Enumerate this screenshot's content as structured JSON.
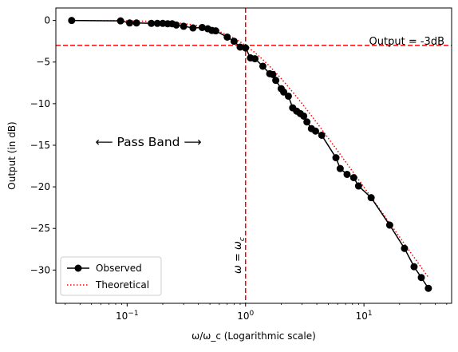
{
  "chart_data": {
    "type": "line",
    "xlabel": "ω/ω_c (Logarithmic scale)",
    "ylabel": "Output (in dB)",
    "xscale": "log",
    "xlim": [
      0.025,
      55
    ],
    "ylim": [
      -34,
      1.5
    ],
    "yticks": [
      0,
      -5,
      -10,
      -15,
      -20,
      -25,
      -30
    ],
    "xticks": [
      {
        "value": 0.1,
        "base": "10",
        "exp": "−1"
      },
      {
        "value": 1,
        "base": "10",
        "exp": "0"
      },
      {
        "value": 10,
        "base": "10",
        "exp": "1"
      }
    ],
    "grid": false,
    "legend": {
      "position": "lower-left",
      "entries": [
        {
          "label": "Observed",
          "series": "observed"
        },
        {
          "label": "Theoretical",
          "series": "theoretical"
        }
      ]
    },
    "series": [
      {
        "id": "observed",
        "color": "#000000",
        "marker": "circle",
        "linestyle": "solid",
        "x": [
          0.034,
          0.088,
          0.105,
          0.12,
          0.16,
          0.18,
          0.2,
          0.22,
          0.24,
          0.26,
          0.3,
          0.36,
          0.43,
          0.48,
          0.52,
          0.56,
          0.7,
          0.8,
          0.9,
          1.0,
          1.1,
          1.2,
          1.4,
          1.6,
          1.7,
          1.8,
          2.0,
          2.1,
          2.3,
          2.5,
          2.7,
          2.9,
          3.1,
          3.3,
          3.6,
          3.9,
          4.4,
          5.8,
          6.3,
          7.2,
          8.2,
          9.0,
          11.5,
          16.5,
          22.0,
          26.5,
          30.5,
          35.0
        ],
        "y": [
          0.0,
          -0.05,
          -0.3,
          -0.3,
          -0.35,
          -0.35,
          -0.35,
          -0.4,
          -0.4,
          -0.55,
          -0.7,
          -0.9,
          -0.85,
          -1.0,
          -1.2,
          -1.25,
          -2.0,
          -2.5,
          -3.2,
          -3.3,
          -4.5,
          -4.6,
          -5.5,
          -6.4,
          -6.5,
          -7.2,
          -8.2,
          -8.6,
          -9.1,
          -10.5,
          -10.9,
          -11.2,
          -11.5,
          -12.2,
          -13.0,
          -13.3,
          -13.8,
          -16.5,
          -17.8,
          -18.5,
          -18.9,
          -19.9,
          -21.3,
          -24.6,
          -27.4,
          -29.6,
          -30.9,
          -32.2
        ]
      },
      {
        "id": "theoretical",
        "color": "#ff0000",
        "marker": "none",
        "linestyle": "dotted",
        "formula": "-10*log10(1+x^2)"
      }
    ],
    "reference_lines": [
      {
        "orientation": "horizontal",
        "value": -3,
        "color": "#ff0000",
        "style": "dashed"
      },
      {
        "orientation": "vertical",
        "value": 1,
        "color": "#ff0000",
        "style": "dashed"
      }
    ],
    "annotations": {
      "minus3db": "Output = -3dB",
      "passband": "⟵ Pass Band ⟶",
      "omega_c": "ω = ω",
      "omega_c_sub": "c"
    }
  }
}
